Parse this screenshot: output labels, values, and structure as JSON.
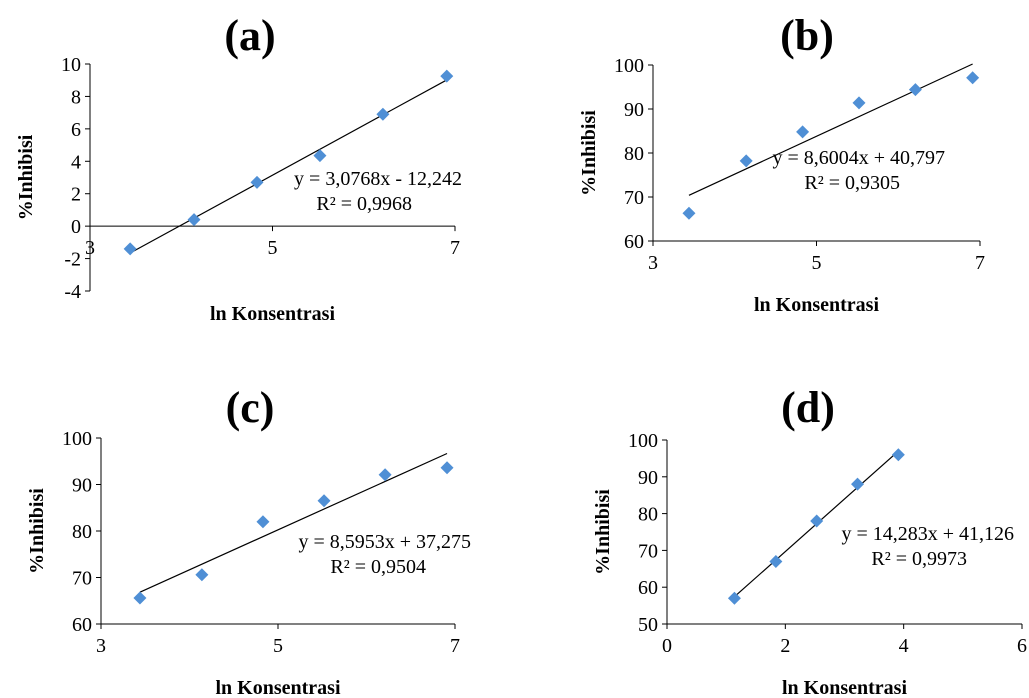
{
  "figure": {
    "panels": [
      {
        "id": "a",
        "title": "(a)"
      },
      {
        "id": "b",
        "title": "(b)"
      },
      {
        "id": "c",
        "title": "(c)"
      },
      {
        "id": "d",
        "title": "(d)"
      }
    ]
  },
  "chart_data": [
    {
      "type": "scatter",
      "title": "(a)",
      "xlabel": "ln Konsentrasi",
      "ylabel": "%Inhibisi",
      "xlim": [
        3,
        7
      ],
      "ylim": [
        -4,
        10
      ],
      "xticks": [
        "3",
        "5",
        "7"
      ],
      "yticks": [
        "-4",
        "-2",
        "0",
        "2",
        "4",
        "6",
        "8",
        "10"
      ],
      "x": [
        3.44,
        4.14,
        4.83,
        5.52,
        6.21,
        6.91
      ],
      "y": [
        -1.4,
        0.4,
        2.7,
        4.35,
        6.9,
        9.25
      ],
      "trendline": {
        "slope": 3.0768,
        "intercept": -12.242
      },
      "equation": "y = 3,0768x - 12,242",
      "r2": "R² = 0,9968",
      "marker_color": "#4f8fd5",
      "line_color": "#000000"
    },
    {
      "type": "scatter",
      "title": "(b)",
      "xlabel": "ln Konsentrasi",
      "ylabel": "%Inhibisi",
      "xlim": [
        3,
        7
      ],
      "ylim": [
        60,
        100
      ],
      "xticks": [
        "3",
        "5",
        "7"
      ],
      "yticks": [
        "60",
        "70",
        "80",
        "90",
        "100"
      ],
      "x": [
        3.44,
        4.14,
        4.83,
        5.52,
        6.21,
        6.91
      ],
      "y": [
        66.3,
        78.2,
        84.8,
        91.4,
        94.4,
        97.1
      ],
      "trendline": {
        "slope": 8.6004,
        "intercept": 40.797
      },
      "equation": "y = 8,6004x + 40,797",
      "r2": "R² = 0,9305",
      "marker_color": "#4f8fd5",
      "line_color": "#000000"
    },
    {
      "type": "scatter",
      "title": "(c)",
      "xlabel": "ln Konsentrasi",
      "ylabel": "%Inhibisi",
      "xlim": [
        3,
        7
      ],
      "ylim": [
        60,
        100
      ],
      "xticks": [
        "3",
        "5",
        "7"
      ],
      "yticks": [
        "60",
        "70",
        "80",
        "90",
        "100"
      ],
      "x": [
        3.44,
        4.14,
        4.83,
        5.52,
        6.21,
        6.91
      ],
      "y": [
        65.6,
        70.6,
        82.0,
        86.5,
        92.1,
        93.6
      ],
      "trendline": {
        "slope": 8.5953,
        "intercept": 37.275
      },
      "equation": "y = 8,5953x + 37,275",
      "r2": "R² = 0,9504",
      "marker_color": "#4f8fd5",
      "line_color": "#000000"
    },
    {
      "type": "scatter",
      "title": "(d)",
      "xlabel": "ln Konsentrasi",
      "ylabel": "%Inhibisi",
      "xlim": [
        0,
        6
      ],
      "ylim": [
        50,
        100
      ],
      "xticks": [
        "0",
        "2",
        "4",
        "6"
      ],
      "yticks": [
        "50",
        "60",
        "70",
        "80",
        "90",
        "100"
      ],
      "x": [
        1.14,
        1.84,
        2.53,
        3.22,
        3.91
      ],
      "y": [
        57.0,
        67.0,
        78.0,
        88.0,
        96.0
      ],
      "trendline": {
        "slope": 14.283,
        "intercept": 41.126
      },
      "equation": "y = 14,283x + 41,126",
      "r2": "R² = 0,9973",
      "marker_color": "#4f8fd5",
      "line_color": "#000000"
    }
  ]
}
